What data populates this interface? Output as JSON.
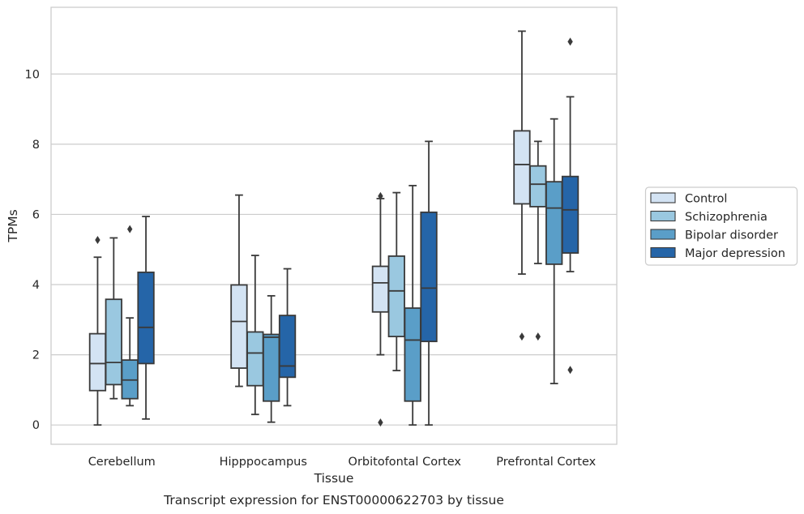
{
  "caption": "Transcript expression for ENST00000622703 by tissue",
  "chart_data": {
    "type": "box",
    "xlabel": "Tissue",
    "ylabel": "TPMs",
    "ylim": [
      -0.55,
      11.9
    ],
    "yticks": [
      0,
      2,
      4,
      6,
      8,
      10
    ],
    "grid": "horizontal",
    "legend_position": "right",
    "categories": [
      "Cerebellum",
      "Hipppocampus",
      "Orbitofontal Cortex",
      "Prefrontal Cortex"
    ],
    "series": [
      {
        "name": "Control",
        "color": "#d3e3f3",
        "boxes": [
          {
            "whisker_low": 0.0,
            "q1": 0.98,
            "median": 1.75,
            "q3": 2.6,
            "whisker_high": 4.78,
            "outliers": [
              5.27
            ]
          },
          {
            "whisker_low": 1.1,
            "q1": 1.62,
            "median": 2.95,
            "q3": 3.99,
            "whisker_high": 6.55,
            "outliers": []
          },
          {
            "whisker_low": 2.0,
            "q1": 3.22,
            "median": 4.05,
            "q3": 4.52,
            "whisker_high": 6.45,
            "outliers": [
              6.52,
              0.07
            ]
          },
          {
            "whisker_low": 4.3,
            "q1": 6.3,
            "median": 7.42,
            "q3": 8.38,
            "whisker_high": 11.22,
            "outliers": [
              2.52
            ]
          }
        ]
      },
      {
        "name": "Schizophrenia",
        "color": "#9ac8e0",
        "boxes": [
          {
            "whisker_low": 0.75,
            "q1": 1.15,
            "median": 1.78,
            "q3": 3.58,
            "whisker_high": 5.33,
            "outliers": []
          },
          {
            "whisker_low": 0.3,
            "q1": 1.12,
            "median": 2.05,
            "q3": 2.65,
            "whisker_high": 4.83,
            "outliers": []
          },
          {
            "whisker_low": 1.55,
            "q1": 2.52,
            "median": 3.82,
            "q3": 4.81,
            "whisker_high": 6.62,
            "outliers": []
          },
          {
            "whisker_low": 4.6,
            "q1": 6.22,
            "median": 6.86,
            "q3": 7.38,
            "whisker_high": 8.08,
            "outliers": [
              2.52
            ]
          }
        ]
      },
      {
        "name": "Bipolar disorder",
        "color": "#5a9ec8",
        "boxes": [
          {
            "whisker_low": 0.55,
            "q1": 0.75,
            "median": 1.28,
            "q3": 1.85,
            "whisker_high": 3.05,
            "outliers": [
              5.58
            ]
          },
          {
            "whisker_low": 0.08,
            "q1": 0.68,
            "median": 2.5,
            "q3": 2.58,
            "whisker_high": 3.68,
            "outliers": []
          },
          {
            "whisker_low": 0.0,
            "q1": 0.68,
            "median": 2.42,
            "q3": 3.33,
            "whisker_high": 6.82,
            "outliers": []
          },
          {
            "whisker_low": 1.18,
            "q1": 4.58,
            "median": 6.18,
            "q3": 6.93,
            "whisker_high": 8.72,
            "outliers": []
          }
        ]
      },
      {
        "name": "Major depression",
        "color": "#2565a8",
        "boxes": [
          {
            "whisker_low": 0.17,
            "q1": 1.75,
            "median": 2.78,
            "q3": 4.35,
            "whisker_high": 5.94,
            "outliers": []
          },
          {
            "whisker_low": 0.55,
            "q1": 1.36,
            "median": 1.68,
            "q3": 3.12,
            "whisker_high": 4.45,
            "outliers": []
          },
          {
            "whisker_low": 0.0,
            "q1": 2.38,
            "median": 3.9,
            "q3": 6.06,
            "whisker_high": 8.08,
            "outliers": []
          },
          {
            "whisker_low": 4.37,
            "q1": 4.9,
            "median": 6.13,
            "q3": 7.08,
            "whisker_high": 9.35,
            "outliers": [
              1.57,
              10.92
            ]
          }
        ]
      }
    ]
  }
}
